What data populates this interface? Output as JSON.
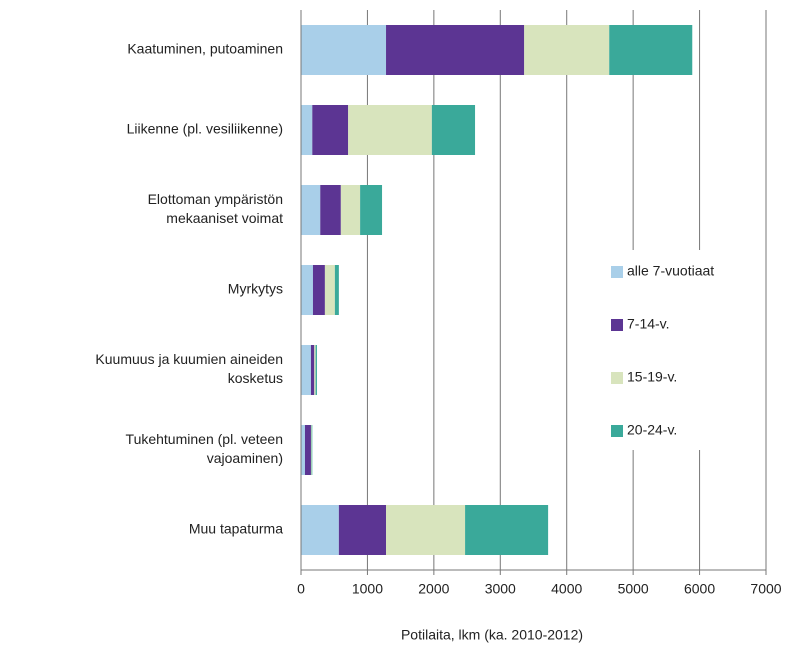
{
  "chart_data": {
    "type": "stacked_barh",
    "categories": [
      [
        "Kaatuminen, putoaminen"
      ],
      [
        "Liikenne (pl. vesiliikenne)"
      ],
      [
        "Elottoman ympäristön",
        "mekaaniset voimat"
      ],
      [
        "Myrkytys"
      ],
      [
        "Kuumuus ja kuumien aineiden",
        "kosketus"
      ],
      [
        "Tukehtuminen (pl. veteen",
        "vajoaminen)"
      ],
      [
        "Muu tapaturma"
      ]
    ],
    "series": [
      {
        "name": "alle 7-vuotiaat",
        "color": "#a9cfe9",
        "values": [
          1280,
          170,
          290,
          180,
          150,
          60,
          570
        ]
      },
      {
        "name": "7-14-v.",
        "color": "#5c3593",
        "values": [
          2080,
          540,
          310,
          180,
          50,
          90,
          710
        ]
      },
      {
        "name": "15-19-v.",
        "color": "#d8e4bd",
        "values": [
          1280,
          1260,
          290,
          150,
          20,
          10,
          1190
        ]
      },
      {
        "name": "20-24-v.",
        "color": "#3aa99a",
        "values": [
          1250,
          650,
          330,
          60,
          20,
          10,
          1250
        ]
      }
    ],
    "xlabel": "Potilaita, lkm (ka. 2010-2012)",
    "xlim": [
      0,
      7000
    ],
    "xticks": [
      0,
      1000,
      2000,
      3000,
      4000,
      5000,
      6000,
      7000
    ],
    "grid": true,
    "legend": "right"
  }
}
